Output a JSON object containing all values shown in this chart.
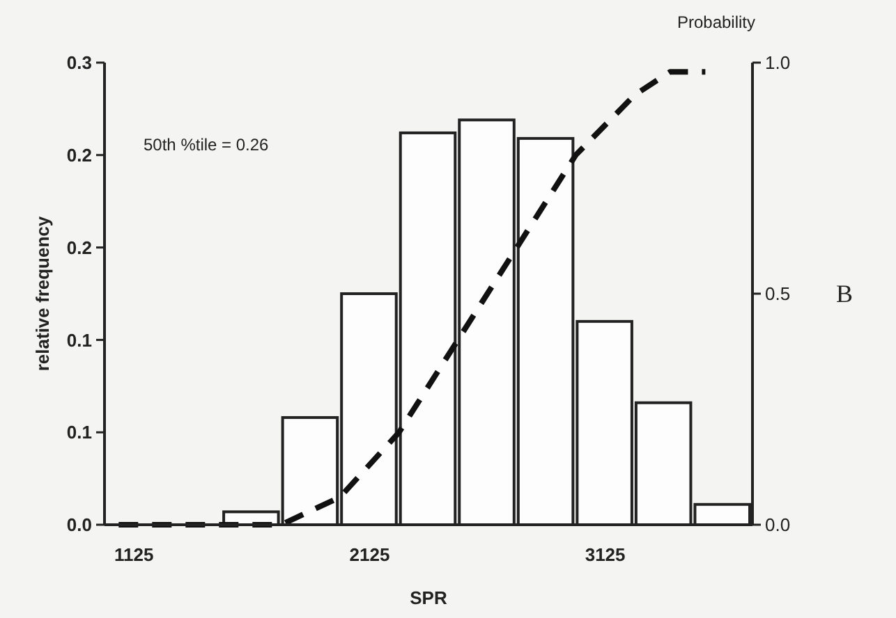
{
  "chart_data": {
    "type": "histogram",
    "xlabel": "SPR",
    "ylabel": "relative frequency",
    "y2label": "Probability",
    "annotations": [
      "50th %tile = 0.26",
      "B"
    ],
    "xlim": [
      1000,
      3750
    ],
    "xticks": [
      1125,
      2125,
      3125
    ],
    "ylim": [
      0,
      0.25
    ],
    "yticks": [
      {
        "value": 0,
        "label": "0.0"
      },
      {
        "value": 0.05,
        "label": "0.1"
      },
      {
        "value": 0.1,
        "label": "0.1"
      },
      {
        "value": 0.15,
        "label": "0.2"
      },
      {
        "value": 0.2,
        "label": "0.2"
      },
      {
        "value": 0.25,
        "label": "0.3"
      }
    ],
    "y2lim": [
      0,
      1
    ],
    "y2ticks": [
      {
        "value": 0,
        "label": "0.0"
      },
      {
        "value": 0.5,
        "label": "0.5"
      },
      {
        "value": 1,
        "label": "1.0"
      }
    ],
    "grid": false,
    "series": [
      {
        "color": "#222222",
        "bins": [
          1500,
          1750,
          2000,
          2250,
          2500,
          2750,
          3000,
          3250,
          3500,
          3750
        ],
        "values": [
          0.007,
          0.058,
          0.125,
          0.212,
          0.219,
          0.209,
          0.11,
          0.066,
          0.011
        ]
      },
      {
        "type": "line",
        "axis": "y2",
        "line_style": "dashed",
        "color": "#111111",
        "x": [
          1060,
          1750,
          2000,
          2250,
          2500,
          2750,
          3000,
          3250,
          3400,
          3550
        ],
        "values": [
          0,
          0,
          0.06,
          0.2,
          0.4,
          0.6,
          0.8,
          0.93,
          0.98,
          0.98
        ]
      }
    ]
  }
}
